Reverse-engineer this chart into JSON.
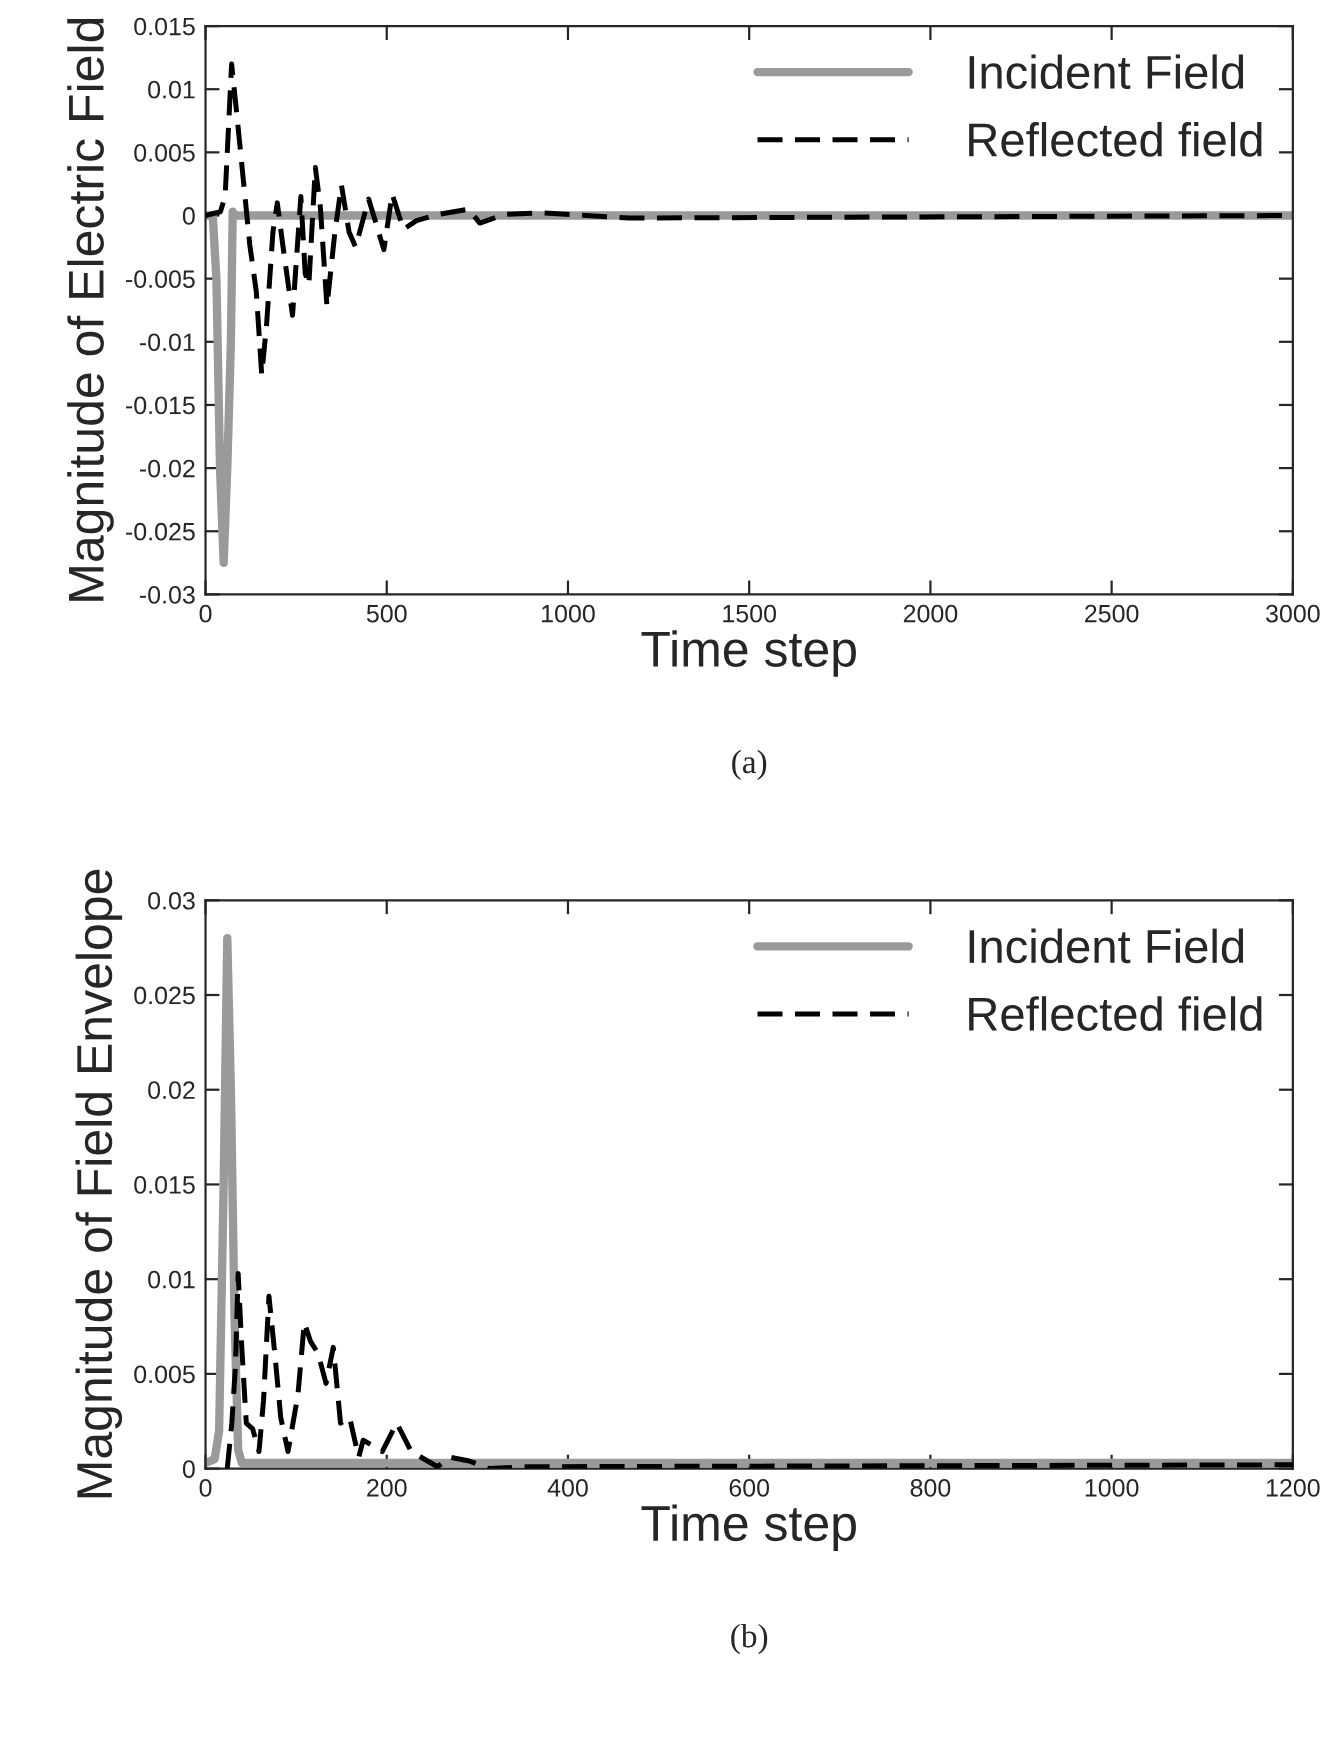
{
  "chart_data": [
    {
      "type": "line",
      "xlabel": "Time step",
      "ylabel": "Magnitude of Electric Field",
      "annotations": [
        "(a)"
      ],
      "xlim": [
        0,
        3000
      ],
      "ylim": [
        -0.03,
        0.015
      ],
      "xticks": [
        0,
        500,
        1000,
        1500,
        2000,
        2500,
        3000
      ],
      "yticks": [
        -0.03,
        -0.025,
        -0.02,
        -0.015,
        -0.01,
        -0.005,
        0,
        0.005,
        0.01,
        0.015
      ],
      "legend": "top right",
      "grid": false,
      "series": [
        {
          "name": "Incident Field",
          "color": "#9a9a9a",
          "line_style": "solid",
          "x": [
            0,
            20,
            30,
            40,
            50,
            60,
            70,
            75,
            80,
            3000
          ],
          "values": [
            0,
            0,
            -0.005,
            -0.02,
            -0.0275,
            -0.02,
            -0.01,
            0.0003,
            0,
            0
          ]
        },
        {
          "name": "Reflected field",
          "color": "#000000",
          "line_style": "dashed",
          "x": [
            0,
            41,
            54,
            72,
            86,
            104,
            122,
            140,
            155,
            168,
            186,
            198,
            213,
            240,
            263,
            275,
            285,
            303,
            317,
            335,
            357,
            375,
            396,
            414,
            450,
            468,
            492,
            515,
            546,
            582,
            645,
            726,
            757,
            825,
            933,
            1168,
            3000
          ],
          "values": [
            0,
            0.0003,
            0.0015,
            0.012,
            0.0081,
            0.0029,
            -0.0023,
            -0.006,
            -0.0126,
            -0.0088,
            -0.0013,
            0.001,
            -0.0023,
            -0.0079,
            0.0015,
            -0.0046,
            -0.0055,
            0.0038,
            0.0006,
            -0.0072,
            -0.0013,
            0.0024,
            -0.0013,
            -0.0025,
            0.0013,
            -0.0004,
            -0.0027,
            0.0017,
            -0.0011,
            -0.0004,
            0.0001,
            0.0005,
            -0.0006,
            0.0001,
            0.0002,
            -0.0002,
            0
          ]
        }
      ]
    },
    {
      "type": "line",
      "xlabel": "Time step",
      "ylabel": "Magnitude of Field Envelope",
      "annotations": [
        "(b)"
      ],
      "xlim": [
        0,
        1200
      ],
      "ylim": [
        0,
        0.03
      ],
      "xticks": [
        0,
        200,
        400,
        600,
        800,
        1000,
        1200
      ],
      "yticks": [
        0,
        0.005,
        0.01,
        0.015,
        0.02,
        0.025,
        0.03
      ],
      "legend": "top right",
      "grid": false,
      "series": [
        {
          "name": "Incident Field",
          "color": "#9a9a9a",
          "line_style": "solid",
          "x": [
            0,
            10,
            15,
            20,
            24,
            28,
            32,
            36,
            40,
            1200
          ],
          "values": [
            0.0003,
            0.0005,
            0.002,
            0.015,
            0.028,
            0.02,
            0.008,
            0.001,
            0.0003,
            0.0003
          ]
        },
        {
          "name": "Reflected field",
          "color": "#000000",
          "line_style": "dashed",
          "x": [
            24,
            29,
            33,
            36,
            40,
            45,
            52,
            59,
            64,
            70,
            77,
            83,
            91,
            102,
            109,
            116,
            124,
            133,
            141,
            149,
            159,
            169,
            174,
            195,
            211,
            227,
            256,
            270,
            291,
            313,
            356,
            1200
          ],
          "values": [
            0,
            0.0024,
            0.0054,
            0.0103,
            0.0064,
            0.0024,
            0.0021,
            0.0009,
            0.0036,
            0.0091,
            0.0058,
            0.0027,
            0.0009,
            0.0039,
            0.0077,
            0.0067,
            0.0061,
            0.0045,
            0.0064,
            0.0024,
            0.0027,
            0.0006,
            0.0015,
            0.0009,
            0.0024,
            0.0009,
            0.0001,
            0.0006,
            0.0004,
            0,
            0.0001,
            0.0002
          ]
        }
      ]
    }
  ]
}
